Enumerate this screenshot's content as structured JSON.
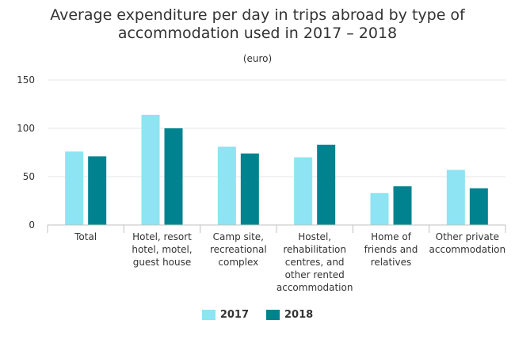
{
  "chart_data": {
    "type": "bar",
    "title": "Average expenditure per day in trips abroad by type of accommodation used in 2017 – 2018",
    "subtitle": "(euro)",
    "xlabel": "",
    "ylabel": "",
    "ylim": [
      0,
      150
    ],
    "yticks": [
      0,
      50,
      100,
      150
    ],
    "grid": true,
    "legend_position": "bottom",
    "categories": [
      [
        "Total"
      ],
      [
        "Hotel, resort",
        "hotel, motel,",
        "guest house"
      ],
      [
        "Camp site,",
        "recreational",
        "complex"
      ],
      [
        "Hostel,",
        "rehabilitation",
        "centres, and",
        "other rented",
        "accommodation"
      ],
      [
        "Home of",
        "friends and",
        "relatives"
      ],
      [
        "Other private",
        "accommodation"
      ]
    ],
    "series": [
      {
        "name": "2017",
        "color": "#8ee4f2",
        "values": [
          76,
          114,
          81,
          70,
          33,
          57
        ]
      },
      {
        "name": "2018",
        "color": "#00838f",
        "values": [
          71,
          100,
          74,
          83,
          40,
          38
        ]
      }
    ]
  }
}
